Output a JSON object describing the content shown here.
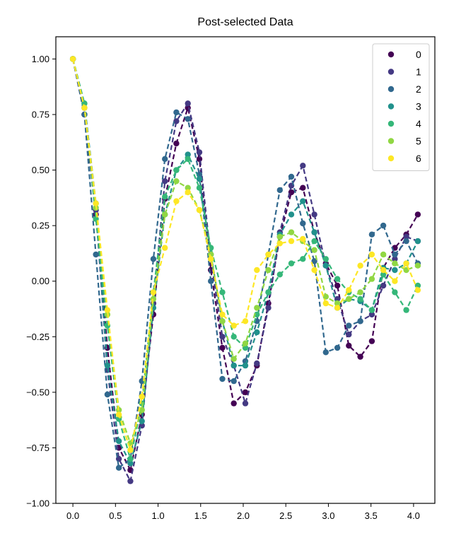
{
  "chart_data": {
    "type": "line",
    "title": "Post-selected Data",
    "xlabel": "",
    "ylabel": "",
    "xlim": [
      -0.2,
      4.25
    ],
    "ylim": [
      -1.0,
      1.1
    ],
    "xticks": [
      0.0,
      0.5,
      1.0,
      1.5,
      2.0,
      2.5,
      3.0,
      3.5,
      4.0
    ],
    "xtick_labels": [
      "0.0",
      "0.5",
      "1.0",
      "1.5",
      "2.0",
      "2.5",
      "3.0",
      "3.5",
      "4.0"
    ],
    "yticks": [
      -1.0,
      -0.75,
      -0.5,
      -0.25,
      0.0,
      0.25,
      0.5,
      0.75,
      1.0
    ],
    "ytick_labels": [
      "−1.00",
      "−0.75",
      "−0.50",
      "−0.25",
      "0.00",
      "0.25",
      "0.50",
      "0.75",
      "1.00"
    ],
    "grid": false,
    "line_style": "dashed-with-markers",
    "legend_position": "top-right",
    "x": [
      0.0,
      0.135,
      0.27,
      0.405,
      0.54,
      0.675,
      0.81,
      0.945,
      1.08,
      1.215,
      1.35,
      1.485,
      1.62,
      1.755,
      1.89,
      2.025,
      2.16,
      2.295,
      2.43,
      2.565,
      2.7,
      2.835,
      2.97,
      3.105,
      3.24,
      3.375,
      3.51,
      3.645,
      3.78,
      3.915,
      4.05
    ],
    "series": [
      {
        "name": "0",
        "color": "#440154",
        "values": [
          1.0,
          0.75,
          0.3,
          -0.3,
          -0.75,
          -0.85,
          -0.6,
          -0.15,
          0.37,
          0.62,
          0.78,
          0.55,
          0.05,
          -0.3,
          -0.55,
          -0.5,
          -0.38,
          -0.1,
          0.2,
          0.4,
          0.42,
          0.22,
          0.08,
          -0.02,
          -0.29,
          -0.34,
          -0.27,
          0.06,
          0.15,
          0.21,
          0.3
        ]
      },
      {
        "name": "1",
        "color": "#443983",
        "values": [
          1.0,
          0.78,
          0.32,
          -0.4,
          -0.8,
          -0.9,
          -0.65,
          -0.1,
          0.45,
          0.72,
          0.8,
          0.58,
          0.1,
          -0.25,
          -0.38,
          -0.55,
          -0.37,
          -0.12,
          0.22,
          0.43,
          0.52,
          0.3,
          0.07,
          -0.08,
          -0.24,
          -0.18,
          -0.15,
          -0.02,
          0.1,
          0.2,
          0.18
        ]
      },
      {
        "name": "2",
        "color": "#31688e",
        "values": [
          1.0,
          0.75,
          0.12,
          -0.51,
          -0.84,
          -0.8,
          -0.45,
          0.1,
          0.55,
          0.76,
          0.73,
          0.48,
          0.0,
          -0.44,
          -0.45,
          -0.36,
          -0.18,
          0.12,
          0.41,
          0.47,
          0.26,
          0.09,
          -0.32,
          -0.3,
          -0.2,
          -0.18,
          0.21,
          0.25,
          0.12,
          0.18,
          0.08
        ]
      },
      {
        "name": "3",
        "color": "#21918c",
        "values": [
          1.0,
          0.8,
          0.35,
          -0.38,
          -0.72,
          -0.82,
          -0.63,
          -0.12,
          0.3,
          0.5,
          0.57,
          0.46,
          0.12,
          -0.18,
          -0.38,
          -0.38,
          -0.23,
          -0.05,
          0.21,
          0.3,
          0.36,
          0.22,
          0.07,
          -0.12,
          -0.08,
          -0.09,
          -0.13,
          0.06,
          0.05,
          0.08,
          0.18
        ]
      },
      {
        "name": "4",
        "color": "#35b779",
        "values": [
          1.0,
          0.8,
          0.28,
          -0.2,
          -0.62,
          -0.8,
          -0.55,
          -0.05,
          0.38,
          0.5,
          0.55,
          0.42,
          0.15,
          -0.05,
          -0.25,
          -0.3,
          -0.15,
          -0.05,
          0.03,
          0.08,
          0.1,
          0.18,
          0.1,
          0.01,
          -0.05,
          -0.08,
          -0.13,
          0.03,
          -0.05,
          -0.13,
          -0.02
        ]
      },
      {
        "name": "5",
        "color": "#90d743",
        "values": [
          1.0,
          0.78,
          0.33,
          -0.15,
          -0.58,
          -0.73,
          -0.58,
          -0.08,
          0.3,
          0.45,
          0.42,
          0.32,
          0.12,
          -0.18,
          -0.35,
          -0.28,
          -0.12,
          0.05,
          0.2,
          0.22,
          0.18,
          0.14,
          -0.07,
          -0.1,
          -0.08,
          -0.05,
          0.01,
          0.12,
          0.08,
          0.05,
          0.07
        ]
      },
      {
        "name": "6",
        "color": "#fde725",
        "values": [
          1.0,
          0.78,
          0.35,
          -0.13,
          -0.6,
          -0.76,
          -0.52,
          -0.05,
          0.15,
          0.36,
          0.4,
          0.32,
          0.1,
          -0.15,
          -0.2,
          -0.18,
          0.05,
          0.12,
          0.17,
          0.18,
          0.19,
          0.05,
          -0.1,
          -0.12,
          -0.04,
          0.07,
          0.12,
          0.05,
          0.0,
          0.08,
          -0.04
        ]
      }
    ]
  }
}
